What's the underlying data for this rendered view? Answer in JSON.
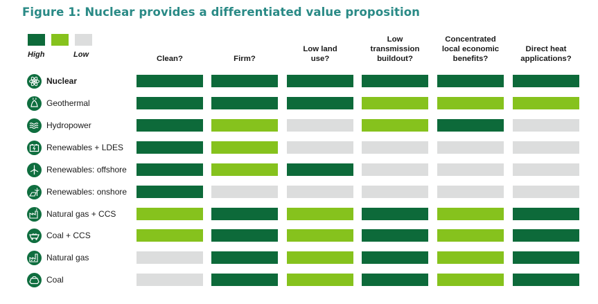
{
  "title": "Figure 1: Nuclear provides a differentiated value proposition",
  "colors": {
    "high": "#0d6a3a",
    "medium": "#86c21d",
    "low": "#dcdddd",
    "title": "#2a8a86"
  },
  "legend": {
    "high_label": "High",
    "low_label": "Low"
  },
  "chart_data": {
    "type": "table",
    "columns": [
      "Clean?",
      "Firm?",
      "Low land\nuse?",
      "Low\ntransmission\nbuildout?",
      "Concentrated\nlocal economic\nbenefits?",
      "Direct heat\napplications?"
    ],
    "rows": [
      {
        "label": "Nuclear",
        "icon": "atom-icon",
        "bold": true,
        "values": [
          "high",
          "high",
          "high",
          "high",
          "high",
          "high"
        ]
      },
      {
        "label": "Geothermal",
        "icon": "geothermal-icon",
        "values": [
          "high",
          "high",
          "high",
          "medium",
          "medium",
          "medium"
        ]
      },
      {
        "label": "Hydropower",
        "icon": "water-waves-icon",
        "values": [
          "high",
          "medium",
          "low",
          "medium",
          "high",
          "low"
        ]
      },
      {
        "label": "Renewables + LDES",
        "icon": "battery-icon",
        "values": [
          "high",
          "medium",
          "low",
          "low",
          "low",
          "low"
        ]
      },
      {
        "label": "Renewables: offshore",
        "icon": "wind-turbine-icon",
        "values": [
          "high",
          "medium",
          "high",
          "low",
          "low",
          "low"
        ]
      },
      {
        "label": "Renewables: onshore",
        "icon": "solar-wind-icon",
        "values": [
          "high",
          "low",
          "low",
          "low",
          "low",
          "low"
        ]
      },
      {
        "label": "Natural gas + CCS",
        "icon": "gas-plant-icon",
        "values": [
          "medium",
          "high",
          "medium",
          "high",
          "medium",
          "high"
        ]
      },
      {
        "label": "Coal + CCS",
        "icon": "coal-cart-icon",
        "values": [
          "medium",
          "high",
          "medium",
          "high",
          "medium",
          "high"
        ]
      },
      {
        "label": "Natural gas",
        "icon": "gas-factory-icon",
        "values": [
          "low",
          "high",
          "medium",
          "high",
          "medium",
          "high"
        ]
      },
      {
        "label": "Coal",
        "icon": "coal-icon",
        "values": [
          "low",
          "high",
          "medium",
          "high",
          "medium",
          "high"
        ]
      }
    ]
  }
}
